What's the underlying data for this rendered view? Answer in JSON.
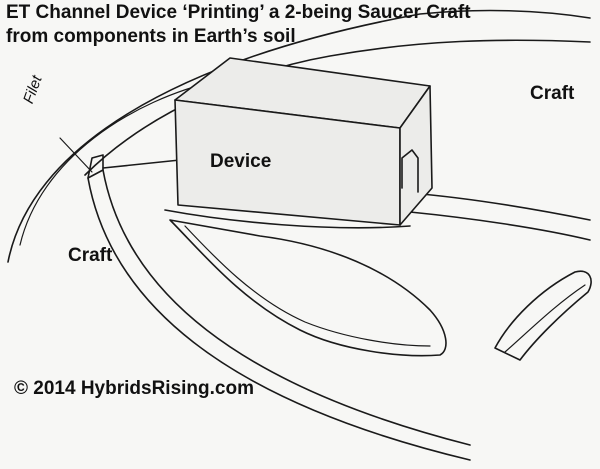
{
  "title": {
    "line1": "ET Channel Device ‘Printing’ a 2-being Saucer Craft",
    "line2": "from components in Earth’s soil"
  },
  "labels": {
    "device": "Device",
    "craft_right": "Craft",
    "craft_left": "Craft",
    "filet": "Filet"
  },
  "copyright": "© 2014 HybridsRising.com"
}
